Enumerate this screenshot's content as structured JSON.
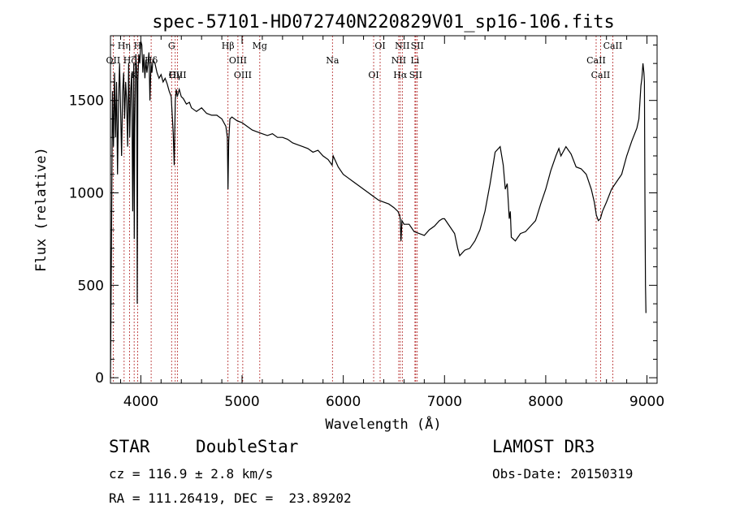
{
  "chart_data": {
    "type": "line",
    "title": "spec-57101-HD072740N220829V01_sp16-106.fits",
    "xlabel": "Wavelength (Å)",
    "ylabel": "Flux (relative)",
    "xlim": [
      3700,
      9100
    ],
    "ylim": [
      -30,
      1850
    ],
    "xticks": [
      4000,
      5000,
      6000,
      7000,
      8000,
      9000
    ],
    "yticks": [
      0,
      500,
      1000,
      1500
    ],
    "grid": false,
    "series": [
      {
        "name": "flux",
        "x": [
          3700,
          3710,
          3720,
          3730,
          3740,
          3750,
          3760,
          3770,
          3780,
          3790,
          3800,
          3810,
          3820,
          3830,
          3840,
          3850,
          3860,
          3870,
          3880,
          3890,
          3900,
          3910,
          3920,
          3930,
          3935,
          3940,
          3950,
          3960,
          3965,
          3970,
          3980,
          3990,
          4000,
          4010,
          4020,
          4030,
          4040,
          4050,
          4060,
          4070,
          4080,
          4090,
          4100,
          4110,
          4120,
          4140,
          4160,
          4180,
          4200,
          4220,
          4240,
          4260,
          4280,
          4300,
          4320,
          4330,
          4340,
          4350,
          4360,
          4380,
          4400,
          4420,
          4450,
          4480,
          4500,
          4550,
          4600,
          4650,
          4700,
          4750,
          4800,
          4840,
          4855,
          4861,
          4868,
          4880,
          4900,
          4950,
          5000,
          5050,
          5100,
          5150,
          5200,
          5250,
          5300,
          5350,
          5400,
          5450,
          5500,
          5550,
          5600,
          5650,
          5700,
          5750,
          5800,
          5850,
          5890,
          5900,
          5950,
          6000,
          6050,
          6100,
          6150,
          6200,
          6250,
          6300,
          6350,
          6400,
          6450,
          6500,
          6540,
          6555,
          6563,
          6570,
          6580,
          6600,
          6650,
          6700,
          6750,
          6800,
          6850,
          6900,
          6950,
          6980,
          7000,
          7050,
          7100,
          7130,
          7150,
          7200,
          7250,
          7300,
          7350,
          7400,
          7450,
          7500,
          7550,
          7580,
          7600,
          7620,
          7640,
          7650,
          7660,
          7700,
          7750,
          7800,
          7850,
          7900,
          7950,
          8000,
          8050,
          8100,
          8130,
          8150,
          8200,
          8250,
          8300,
          8350,
          8400,
          8450,
          8480,
          8500,
          8520,
          8540,
          8560,
          8600,
          8650,
          8700,
          8750,
          8800,
          8850,
          8900,
          8920,
          8940,
          8950,
          8960,
          8970,
          8975,
          8980,
          8985,
          8990
        ],
        "y": [
          0,
          700,
          1550,
          1250,
          1650,
          1300,
          1600,
          1100,
          1500,
          1700,
          1450,
          1200,
          1550,
          1650,
          1400,
          1600,
          1500,
          1250,
          1700,
          1300,
          1550,
          1650,
          900,
          1700,
          750,
          1350,
          1750,
          1650,
          400,
          1600,
          1750,
          1700,
          1820,
          1800,
          1650,
          1750,
          1620,
          1720,
          1650,
          1700,
          1760,
          1500,
          1700,
          1650,
          1720,
          1700,
          1650,
          1620,
          1640,
          1600,
          1620,
          1590,
          1550,
          1520,
          1320,
          1150,
          1500,
          1560,
          1520,
          1560,
          1520,
          1510,
          1480,
          1490,
          1460,
          1440,
          1460,
          1430,
          1420,
          1420,
          1400,
          1360,
          1300,
          1020,
          1280,
          1400,
          1410,
          1390,
          1380,
          1360,
          1340,
          1330,
          1320,
          1310,
          1320,
          1300,
          1300,
          1290,
          1270,
          1260,
          1250,
          1240,
          1220,
          1230,
          1200,
          1180,
          1150,
          1200,
          1140,
          1100,
          1080,
          1060,
          1040,
          1020,
          1000,
          980,
          960,
          950,
          940,
          920,
          900,
          880,
          860,
          740,
          850,
          830,
          830,
          790,
          780,
          770,
          800,
          820,
          850,
          860,
          860,
          820,
          780,
          700,
          660,
          690,
          700,
          740,
          800,
          900,
          1050,
          1220,
          1250,
          1150,
          1020,
          1050,
          860,
          900,
          760,
          740,
          780,
          790,
          820,
          850,
          940,
          1020,
          1120,
          1200,
          1240,
          1200,
          1250,
          1210,
          1140,
          1130,
          1100,
          1020,
          950,
          880,
          850,
          860,
          900,
          950,
          1020,
          1060,
          1100,
          1200,
          1280,
          1350,
          1400,
          1580,
          1620,
          1700,
          1650,
          1600,
          1000,
          500,
          350
        ]
      }
    ],
    "lines": [
      {
        "label": "Hη",
        "wl": 3835
      },
      {
        "label": "Hζ",
        "wl": 3889
      },
      {
        "label": "K",
        "wl": 3934
      },
      {
        "label": "H",
        "wl": 3968
      },
      {
        "label": "Hδ",
        "wl": 4102
      },
      {
        "label": "Hγ",
        "wl": 4340
      },
      {
        "label": "G",
        "wl": 4304
      },
      {
        "label": "OII",
        "wl": 3727
      },
      {
        "label": "OIII",
        "wl": 4363
      },
      {
        "label": "Hβ",
        "wl": 4861
      },
      {
        "label": "OIII",
        "wl": 4959
      },
      {
        "label": "OIII",
        "wl": 5007
      },
      {
        "label": "Mg",
        "wl": 5175
      },
      {
        "label": "Na",
        "wl": 5893
      },
      {
        "label": "OI",
        "wl": 6300
      },
      {
        "label": "OI",
        "wl": 6364
      },
      {
        "label": "NII",
        "wl": 6548
      },
      {
        "label": "Hα",
        "wl": 6563
      },
      {
        "label": "NII",
        "wl": 6583
      },
      {
        "label": "Li",
        "wl": 6708
      },
      {
        "label": "SII",
        "wl": 6716
      },
      {
        "label": "SII",
        "wl": 6731
      },
      {
        "label": "CaII",
        "wl": 8498
      },
      {
        "label": "CaII",
        "wl": 8542
      },
      {
        "label": "CaII",
        "wl": 8662
      }
    ]
  },
  "info": {
    "class": "STAR",
    "subclass": "DoubleStar",
    "survey": "LAMOST DR3",
    "cz": "cz = 116.9 ± 2.8 km/s",
    "obs_date": "Obs-Date: 20150319",
    "coords": "RA = 111.26419, DEC =  23.89202"
  },
  "colors": {
    "line_marker": "#b22222",
    "spectrum": "#000000"
  }
}
